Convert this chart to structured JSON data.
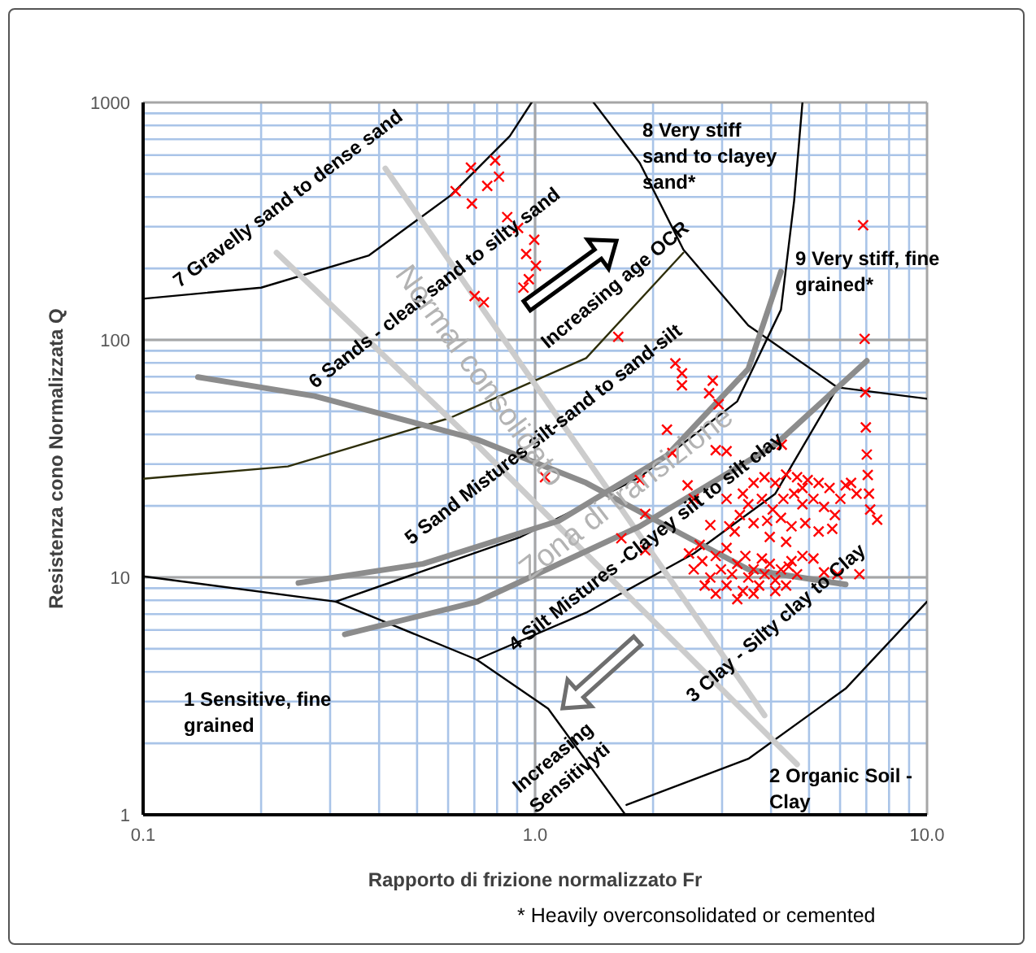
{
  "chart_data": {
    "type": "scatter",
    "xlabel": "Rapporto di frizione normalizzato Fr",
    "ylabel": "Resistenza cono Normalizzata Q",
    "log": "xy",
    "grid": true,
    "xlim": [
      0.1,
      10
    ],
    "xticks": [
      {
        "value": 0.1,
        "label": "0.1"
      },
      {
        "value": 1,
        "label": "1.0"
      },
      {
        "value": 10,
        "label": "10.0"
      }
    ],
    "ylim": [
      1,
      1000
    ],
    "yticks": [
      1,
      10,
      100,
      1000
    ],
    "series": [
      {
        "type": "line",
        "color": "#000000",
        "x": [
          0.1,
          0.31,
          0.71,
          1.08,
          1.7
        ],
        "values": [
          10.1,
          7.9,
          4.5,
          2.8,
          1
        ]
      },
      {
        "type": "line",
        "color": "#000000",
        "x": [
          1.71,
          3.5,
          6.2,
          10
        ],
        "values": [
          1.1,
          1.72,
          3.4,
          7.9
        ]
      },
      {
        "type": "line",
        "color": "#000000",
        "x": [
          0.71,
          1.35,
          2.54,
          4.1,
          5.91
        ],
        "values": [
          4.5,
          7.1,
          12.6,
          22.5,
          63.1
        ]
      },
      {
        "type": "line",
        "color": "#000000",
        "x": [
          0.31,
          0.919,
          1.85,
          3.28,
          4.24,
          4.58,
          4.81
        ],
        "values": [
          7.9,
          14.8,
          26.4,
          55.1,
          134,
          385,
          1000
        ]
      },
      {
        "type": "line",
        "color": "#2e2e0a",
        "x": [
          0.1,
          0.234,
          0.608,
          1.35,
          2.39
        ],
        "values": [
          26,
          29.3,
          47,
          83.8,
          233
        ]
      },
      {
        "type": "line",
        "color": "#000000",
        "x": [
          1.41,
          1.85,
          2.39,
          3.5,
          5.91,
          10
        ],
        "values": [
          1000,
          556,
          240,
          115,
          63.1,
          56.5
        ]
      },
      {
        "type": "line",
        "color": "#000000",
        "x": [
          0.1,
          0.2,
          0.377,
          0.608,
          0.862,
          0.98
        ],
        "values": [
          149,
          166,
          227,
          405,
          722,
          1000
        ]
      },
      {
        "type": "line",
        "color": "#cccccc",
        "x": [
          0.219,
          0.71,
          4.66
        ],
        "values": [
          233,
          36.2,
          1.63
        ]
      },
      {
        "type": "line",
        "color": "#cccccc",
        "x": [
          0.415,
          3.85
        ],
        "values": [
          527,
          2.62
        ]
      },
      {
        "type": "line",
        "color": "#8c8c8c",
        "x": [
          0.138,
          0.274,
          0.71,
          1.35,
          2.17,
          3.5,
          6.2
        ],
        "values": [
          69.7,
          58,
          38.1,
          25,
          16.4,
          10.8,
          9.33
        ]
      },
      {
        "type": "line",
        "color": "#8c8c8c",
        "x": [
          0.249,
          0.518,
          1.15,
          2.17,
          3.5,
          4.24
        ],
        "values": [
          9.47,
          11.4,
          17.3,
          32.6,
          75.5,
          194
        ]
      },
      {
        "type": "line",
        "color": "#8c8c8c",
        "x": [
          0.327,
          0.71,
          1.85,
          4.1,
          7.02
        ],
        "values": [
          5.75,
          7.88,
          16.4,
          36.2,
          81.6
        ]
      },
      {
        "color": "#ff0000",
        "marker": "cross",
        "x": [
          0.627,
          0.686,
          0.69,
          0.755,
          0.791,
          0.809,
          0.849,
          0.905,
          0.995,
          0.949,
          1.005,
          0.964,
          0.934,
          0.701,
          0.74,
          1.63,
          2.28,
          2.37,
          2.37,
          2.84,
          2.78,
          2.94,
          2.17,
          2.24,
          2.89,
          3.08,
          4.26,
          1.06,
          1.85,
          1.91,
          1.66,
          1.91,
          2.45,
          2.54,
          2.8,
          3.13,
          6.87,
          6.93,
          6.96,
          6.98,
          7.02,
          7.06,
          7.11,
          7.16,
          7.46,
          6.72,
          3.39,
          3.61,
          3.85,
          4.1,
          4.37,
          4.66,
          4.96,
          5.29,
          5.64,
          6.01,
          6.2,
          3.5,
          3.79,
          4.04,
          4.3,
          4.58,
          4.81,
          5.13,
          5.46,
          5.82,
          3.33,
          3.61,
          3.91,
          4.24,
          4.51,
          4.89,
          5.29,
          5.73,
          3.08,
          3.23,
          3.97,
          4.37,
          4.81,
          6.4,
          6.61,
          2.47,
          2.54,
          2.67,
          2.8,
          2.89,
          2.98,
          3.08,
          3.18,
          3.28,
          3.39,
          3.5,
          3.61,
          3.73,
          3.85,
          3.97,
          4.1,
          4.24,
          4.37,
          4.51,
          4.66,
          4.81,
          2.71,
          2.89,
          3.28,
          3.61,
          4.1,
          3.08,
          3.44,
          3.79,
          4.44,
          5.13,
          5.46,
          5.91,
          2.63
        ],
        "values": [
          423,
          532,
          375,
          445,
          570,
          487,
          329,
          296,
          264,
          230,
          205,
          180,
          166,
          153,
          144,
          103,
          79.6,
          72.3,
          64.4,
          67.3,
          59.6,
          53.6,
          41.9,
          33.4,
          34.3,
          34,
          36.2,
          26.4,
          25.7,
          18.5,
          14.6,
          13,
          24.4,
          21.4,
          16.6,
          16.4,
          304,
          101,
          60.2,
          42.8,
          32.9,
          27,
          22.5,
          19.3,
          17.5,
          10.3,
          22.5,
          25,
          26.4,
          25,
          27.1,
          26.4,
          25.7,
          25,
          23.8,
          21.4,
          24.4,
          20.3,
          21.4,
          19.3,
          21.4,
          22.5,
          20.3,
          21.4,
          19.8,
          18.3,
          18.3,
          16.9,
          17.3,
          17.8,
          16.4,
          16.9,
          15.6,
          16,
          21.4,
          15.6,
          14.8,
          14.1,
          23.8,
          25,
          22.5,
          12.6,
          10.8,
          11.7,
          9.98,
          12.3,
          10.8,
          9.23,
          10.3,
          11.4,
          8.75,
          9.98,
          10.8,
          9.23,
          10.3,
          11.4,
          9.72,
          10.8,
          9.23,
          11.7,
          10.3,
          12.3,
          9.23,
          8.53,
          8.09,
          8.53,
          8.75,
          13.3,
          12.3,
          12,
          11.1,
          12,
          10.5,
          10.3,
          13.7
        ]
      }
    ],
    "annotations": [
      "1 Sensitive, fine grained",
      "2 Organic Soil - Clay",
      "3 Clay - Silty clay to Clay",
      "4 Silt Mistures -Clayey silt to silt clay",
      "5 Sand Mistures silt-sand to sand-silt",
      "6 Sands - clean sand to silty sand",
      "7 Gravelly sand to dense sand",
      "8  Very stiff sand to clayey sand*",
      "9 Very stiff, fine grained*",
      "Normal consolidato",
      "Zona di transizione",
      "Increasing age OCR",
      "Increasing Sensitivyti",
      "* Heavily overconsolidated or cemented"
    ]
  }
}
